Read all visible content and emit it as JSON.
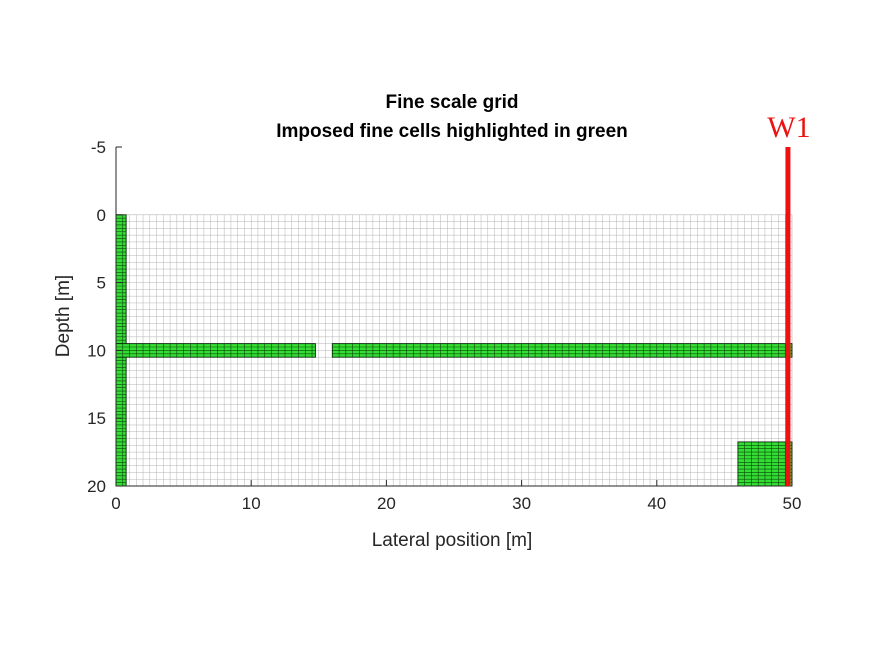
{
  "chart_data": {
    "type": "heatmap",
    "title_lines": [
      "Fine scale grid",
      "Imposed fine cells highlighted in green"
    ],
    "xlabel": "Lateral position [m]",
    "ylabel": "Depth [m]",
    "xlim": [
      0,
      50
    ],
    "ylim": [
      -5,
      20
    ],
    "y_reversed": true,
    "xticks": [
      0,
      10,
      20,
      30,
      40,
      50
    ],
    "yticks": [
      -5,
      0,
      5,
      10,
      15,
      20
    ],
    "grid": {
      "x_range": [
        0,
        50
      ],
      "y_range": [
        0,
        20
      ],
      "nx": 100,
      "ny": 40,
      "line_color": "#b4b4b4"
    },
    "highlight_color": "#33dd33",
    "highlight_regions": [
      {
        "name": "left-column",
        "x": [
          0,
          0.75
        ],
        "y": [
          0,
          20
        ]
      },
      {
        "name": "layer-segment-left",
        "x": [
          0,
          14.75
        ],
        "y": [
          9.5,
          10.5
        ]
      },
      {
        "name": "layer-segment-right",
        "x": [
          16,
          50
        ],
        "y": [
          9.5,
          10.5
        ]
      },
      {
        "name": "bottom-right-block",
        "x": [
          46,
          50
        ],
        "y": [
          16.75,
          20
        ]
      }
    ],
    "wells": [
      {
        "name": "W1",
        "x": 49.7,
        "y_range": [
          -5,
          20
        ],
        "color": "#ee1111"
      }
    ]
  }
}
